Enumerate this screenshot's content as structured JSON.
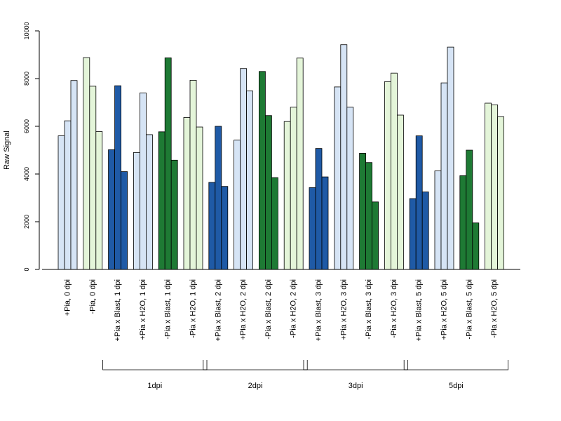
{
  "chart_data": {
    "type": "bar",
    "ylabel": "Raw Signal",
    "ylim": [
      0,
      10000
    ],
    "yticks": [
      0,
      2000,
      4000,
      6000,
      8000,
      10000
    ],
    "grid": false,
    "colors": {
      "light_blue": "#d6e4f5",
      "light_green": "#e4f5d9",
      "dark_blue": "#1f5aa6",
      "dark_green": "#1e7a34",
      "border": "#000000"
    },
    "categories": [
      "+Pia, 0 dpi",
      "-Pia, 0 dpi",
      "+Pia x Blast, 1 dpi",
      "+Pia x H2O, 1 dpi",
      "-Pia x Blast, 1 dpi",
      "-Pia x H2O, 1 dpi",
      "+Pia x Blast, 2 dpi",
      "+Pia x H2O, 2 dpi",
      "-Pia x Blast, 2 dpi",
      "-Pia x H2O, 2 dpi",
      "+Pia x Blast, 3 dpi",
      "+Pia x H2O, 3 dpi",
      "-Pia x Blast, 3 dpi",
      "-Pia x H2O, 3 dpi",
      "+Pia x Blast, 5 dpi",
      "+Pia x H2O, 5 dpi",
      "-Pia x Blast, 5 dpi",
      "-Pia x H2O, 5 dpi"
    ],
    "bar_colors": [
      "light_blue",
      "light_green",
      "dark_blue",
      "light_blue",
      "dark_green",
      "light_green",
      "dark_blue",
      "light_blue",
      "dark_green",
      "light_green",
      "dark_blue",
      "light_blue",
      "dark_green",
      "light_green",
      "dark_blue",
      "light_blue",
      "dark_green",
      "light_green"
    ],
    "values": [
      [
        5600,
        6230,
        7920
      ],
      [
        8880,
        7680,
        5780
      ],
      [
        5020,
        7700,
        4100
      ],
      [
        4900,
        7400,
        5650
      ],
      [
        5770,
        8870,
        4580
      ],
      [
        6370,
        7930,
        5970
      ],
      [
        3650,
        6000,
        3480
      ],
      [
        5420,
        8420,
        7480
      ],
      [
        8300,
        6450,
        3850
      ],
      [
        6200,
        6800,
        8860
      ],
      [
        3430,
        5070,
        3880
      ],
      [
        7650,
        9420,
        6800
      ],
      [
        4870,
        4480,
        2830
      ],
      [
        7870,
        8230,
        6470
      ],
      [
        2970,
        5600,
        3250
      ],
      [
        4130,
        7820,
        9320
      ],
      [
        3930,
        5000,
        1950
      ],
      [
        6970,
        6900,
        6400
      ]
    ],
    "groups": [
      {
        "label": "1dpi",
        "start": 2,
        "end": 5
      },
      {
        "label": "2dpi",
        "start": 6,
        "end": 9
      },
      {
        "label": "3dpi",
        "start": 10,
        "end": 13
      },
      {
        "label": "5dpi",
        "start": 14,
        "end": 17
      }
    ]
  }
}
